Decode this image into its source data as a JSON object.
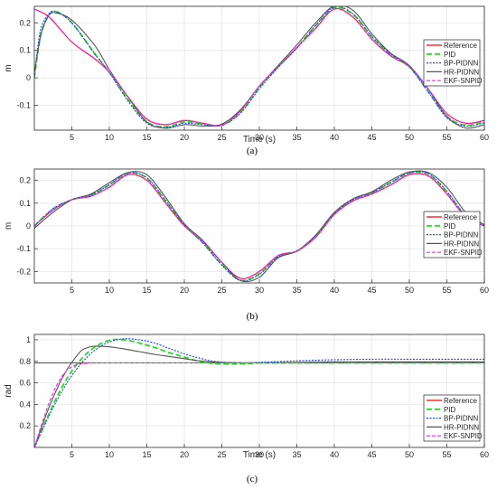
{
  "chart_data": [
    {
      "type": "line",
      "caption": "(a)",
      "xlabel": "Time (s)",
      "ylabel": "m",
      "xlim": [
        0,
        60
      ],
      "ylim": [
        -0.19,
        0.26
      ],
      "xticks": [
        5,
        10,
        15,
        20,
        25,
        30,
        35,
        40,
        45,
        50,
        55,
        60
      ],
      "yticks": [
        -0.1,
        0,
        0.1,
        0.2
      ],
      "ytick_labels": [
        "-0.1",
        "0",
        "0.1",
        "0.2"
      ],
      "grid": true,
      "legend_position": "right",
      "series": [
        {
          "name": "Reference",
          "color": "#ff0000",
          "dash": "solid",
          "x": [
            0,
            2,
            5,
            8,
            10,
            12.5,
            15,
            17.5,
            20,
            22.5,
            25,
            27.5,
            30,
            32.5,
            35,
            37.5,
            40,
            42.5,
            45,
            47.5,
            50,
            52.5,
            55,
            57.5,
            60
          ],
          "y": [
            0.25,
            0.22,
            0.13,
            0.07,
            0.02,
            -0.07,
            -0.15,
            -0.17,
            -0.155,
            -0.165,
            -0.172,
            -0.12,
            -0.03,
            0.04,
            0.11,
            0.18,
            0.25,
            0.22,
            0.14,
            0.08,
            0.04,
            -0.04,
            -0.13,
            -0.165,
            -0.155
          ]
        },
        {
          "name": "PID",
          "color": "#22dd22",
          "dash": "6,3",
          "x": [
            0,
            0.5,
            1,
            2,
            3,
            5,
            8,
            10,
            12.5,
            15,
            17.5,
            20,
            22.5,
            25,
            27.5,
            30,
            32.5,
            35,
            37.5,
            40,
            42.5,
            45,
            47.5,
            50,
            52.5,
            55,
            57.5,
            60
          ],
          "y": [
            0,
            0.1,
            0.17,
            0.23,
            0.24,
            0.2,
            0.09,
            0.02,
            -0.08,
            -0.16,
            -0.178,
            -0.16,
            -0.168,
            -0.172,
            -0.125,
            -0.035,
            0.04,
            0.11,
            0.19,
            0.255,
            0.23,
            0.15,
            0.085,
            0.04,
            -0.05,
            -0.14,
            -0.172,
            -0.16
          ]
        },
        {
          "name": "BP-PIDNN",
          "color": "#1f3fff",
          "dash": "2,1.5",
          "x": [
            0,
            0.5,
            1,
            2,
            3,
            5,
            8,
            10,
            12.5,
            15,
            17.5,
            20,
            22.5,
            25,
            27.5,
            30,
            32.5,
            35,
            37.5,
            40,
            42.5,
            45,
            47.5,
            50,
            52.5,
            55,
            57.5,
            60
          ],
          "y": [
            0,
            0.12,
            0.19,
            0.235,
            0.24,
            0.2,
            0.09,
            0.02,
            -0.085,
            -0.165,
            -0.18,
            -0.165,
            -0.17,
            -0.172,
            -0.128,
            -0.04,
            0.038,
            0.108,
            0.19,
            0.258,
            0.232,
            0.15,
            0.087,
            0.04,
            -0.05,
            -0.145,
            -0.175,
            -0.163
          ]
        },
        {
          "name": "HR-PIDNN",
          "color": "#555555",
          "dash": "solid",
          "x": [
            0,
            0.5,
            1,
            2,
            3,
            5,
            8,
            10,
            12.5,
            15,
            17.5,
            20,
            22.5,
            25,
            27.5,
            30,
            32.5,
            35,
            37.5,
            40,
            42.5,
            45,
            47.5,
            50,
            52.5,
            55,
            57.5,
            60
          ],
          "y": [
            0.02,
            0.1,
            0.17,
            0.23,
            0.235,
            0.21,
            0.12,
            0.03,
            -0.07,
            -0.16,
            -0.183,
            -0.17,
            -0.175,
            -0.168,
            -0.115,
            -0.03,
            0.045,
            0.12,
            0.2,
            0.262,
            0.245,
            0.16,
            0.09,
            0.045,
            -0.04,
            -0.14,
            -0.182,
            -0.17
          ]
        },
        {
          "name": "EKF-SNPID",
          "color": "#ff22ff",
          "dash": "4,2",
          "x": [
            0,
            2,
            5,
            8,
            10,
            12.5,
            15,
            17.5,
            20,
            22.5,
            25,
            27.5,
            30,
            32.5,
            35,
            37.5,
            40,
            42.5,
            45,
            47.5,
            50,
            52.5,
            55,
            57.5,
            60
          ],
          "y": [
            0.25,
            0.221,
            0.131,
            0.071,
            0.021,
            -0.069,
            -0.149,
            -0.169,
            -0.154,
            -0.164,
            -0.171,
            -0.119,
            -0.029,
            0.041,
            0.111,
            0.181,
            0.251,
            0.221,
            0.141,
            0.081,
            0.041,
            -0.039,
            -0.129,
            -0.164,
            -0.154
          ]
        }
      ]
    },
    {
      "type": "line",
      "caption": "(b)",
      "xlabel": "",
      "ylabel": "m",
      "xlim": [
        0,
        60
      ],
      "ylim": [
        -0.25,
        0.25
      ],
      "xticks": [
        5,
        10,
        15,
        20,
        25,
        30,
        35,
        40,
        45,
        50,
        55,
        60
      ],
      "yticks": [
        -0.2,
        -0.1,
        0,
        0.1,
        0.2
      ],
      "ytick_labels": [
        "-0.2",
        "-0.1",
        "0",
        "0.1",
        "0.2"
      ],
      "grid": true,
      "legend_position": "right",
      "series": [
        {
          "name": "Reference",
          "color": "#ff0000",
          "dash": "solid",
          "x": [
            0,
            2.5,
            5,
            7.5,
            10,
            12.5,
            15,
            17.5,
            20,
            22.5,
            25,
            27.5,
            30,
            32.5,
            35,
            37.5,
            40,
            42.5,
            45,
            47.5,
            50,
            52.5,
            55,
            57.5,
            60
          ],
          "y": [
            0,
            0.07,
            0.115,
            0.13,
            0.17,
            0.225,
            0.2,
            0.1,
            0,
            -0.07,
            -0.16,
            -0.23,
            -0.2,
            -0.13,
            -0.11,
            -0.05,
            0.05,
            0.11,
            0.14,
            0.18,
            0.225,
            0.22,
            0.14,
            0.04,
            0
          ]
        },
        {
          "name": "PID",
          "color": "#22dd22",
          "dash": "6,3",
          "x": [
            0,
            2.5,
            5,
            7.5,
            10,
            12.5,
            15,
            17.5,
            20,
            22.5,
            25,
            27.5,
            30,
            32.5,
            35,
            37.5,
            40,
            42.5,
            45,
            47.5,
            50,
            52.5,
            55,
            57.5,
            60
          ],
          "y": [
            0,
            0.075,
            0.115,
            0.135,
            0.18,
            0.232,
            0.21,
            0.11,
            0.005,
            -0.075,
            -0.17,
            -0.238,
            -0.21,
            -0.135,
            -0.11,
            -0.045,
            0.055,
            0.115,
            0.145,
            0.19,
            0.232,
            0.228,
            0.15,
            0.045,
            0
          ]
        },
        {
          "name": "BP-PIDNN",
          "color": "#1f3fff",
          "dash": "2,1.5",
          "x": [
            0,
            2.5,
            5,
            7.5,
            10,
            12.5,
            15,
            17.5,
            20,
            22.5,
            25,
            27.5,
            30,
            32.5,
            35,
            37.5,
            40,
            42.5,
            45,
            47.5,
            50,
            52.5,
            55,
            57.5,
            60
          ],
          "y": [
            0,
            0.076,
            0.116,
            0.136,
            0.181,
            0.233,
            0.212,
            0.112,
            0.004,
            -0.076,
            -0.172,
            -0.24,
            -0.212,
            -0.136,
            -0.111,
            -0.046,
            0.054,
            0.116,
            0.146,
            0.191,
            0.233,
            0.23,
            0.152,
            0.046,
            0
          ]
        },
        {
          "name": "HR-PIDNN",
          "color": "#555555",
          "dash": "solid",
          "x": [
            0,
            2.5,
            5,
            7.5,
            10,
            12.5,
            15,
            17.5,
            20,
            22.5,
            25,
            27.5,
            30,
            32.5,
            35,
            37.5,
            40,
            42.5,
            45,
            47.5,
            50,
            52.5,
            55,
            57.5,
            60
          ],
          "y": [
            -0.01,
            0.06,
            0.115,
            0.14,
            0.19,
            0.235,
            0.225,
            0.125,
            0.01,
            -0.065,
            -0.16,
            -0.24,
            -0.225,
            -0.14,
            -0.11,
            -0.04,
            0.06,
            0.12,
            0.15,
            0.2,
            0.237,
            0.235,
            0.17,
            0.06,
            0.005
          ]
        },
        {
          "name": "EKF-SNPID",
          "color": "#ff22ff",
          "dash": "4,2",
          "x": [
            0,
            2.5,
            5,
            7.5,
            10,
            12.5,
            15,
            17.5,
            20,
            22.5,
            25,
            27.5,
            30,
            32.5,
            35,
            37.5,
            40,
            42.5,
            45,
            47.5,
            50,
            52.5,
            55,
            57.5,
            60
          ],
          "y": [
            0,
            0.07,
            0.115,
            0.131,
            0.171,
            0.226,
            0.201,
            0.101,
            0.001,
            -0.069,
            -0.159,
            -0.229,
            -0.199,
            -0.129,
            -0.109,
            -0.049,
            0.051,
            0.111,
            0.141,
            0.181,
            0.226,
            0.221,
            0.141,
            0.041,
            0.001
          ]
        }
      ]
    },
    {
      "type": "line",
      "caption": "(c)",
      "xlabel": "Time (s)",
      "ylabel": "rad",
      "xlim": [
        0,
        60
      ],
      "ylim": [
        0,
        1.05
      ],
      "xticks": [
        5,
        10,
        15,
        20,
        25,
        30,
        35,
        40,
        45,
        50,
        55,
        60
      ],
      "yticks": [
        0.2,
        0.4,
        0.6,
        0.8,
        1
      ],
      "ytick_labels": [
        "0.2",
        "0.4",
        "0.6",
        "0.8",
        "1"
      ],
      "grid": true,
      "legend_position": "bottom-right",
      "series": [
        {
          "name": "Reference",
          "color": "#ff0000",
          "dash": "solid",
          "x": [
            0,
            60
          ],
          "y": [
            0.785,
            0.785
          ]
        },
        {
          "name": "PID",
          "color": "#22dd22",
          "dash": "6,3",
          "x": [
            0,
            2,
            4,
            6,
            8,
            10,
            12,
            14,
            16,
            18,
            20,
            22,
            24,
            26,
            28,
            30,
            35,
            40,
            50,
            60
          ],
          "y": [
            0,
            0.32,
            0.6,
            0.8,
            0.93,
            0.995,
            1.0,
            0.97,
            0.93,
            0.88,
            0.84,
            0.8,
            0.78,
            0.775,
            0.778,
            0.785,
            0.785,
            0.785,
            0.785,
            0.785
          ]
        },
        {
          "name": "BP-PIDNN",
          "color": "#1f3fff",
          "dash": "2,1.5",
          "x": [
            0,
            2,
            4,
            6,
            8,
            10,
            12,
            14,
            16,
            18,
            20,
            22,
            24,
            27,
            30,
            35,
            40,
            45,
            50,
            55,
            60
          ],
          "y": [
            0,
            0.3,
            0.56,
            0.76,
            0.9,
            0.98,
            1.01,
            1.0,
            0.97,
            0.92,
            0.87,
            0.83,
            0.8,
            0.785,
            0.79,
            0.805,
            0.815,
            0.82,
            0.82,
            0.82,
            0.82
          ]
        },
        {
          "name": "HR-PIDNN",
          "color": "#555555",
          "dash": "solid",
          "x": [
            0,
            2,
            4,
            6,
            7,
            8,
            10,
            12,
            14,
            16,
            18,
            20,
            22,
            25,
            30,
            35,
            40,
            45,
            50,
            60
          ],
          "y": [
            0,
            0.38,
            0.68,
            0.88,
            0.925,
            0.94,
            0.935,
            0.915,
            0.89,
            0.865,
            0.845,
            0.825,
            0.805,
            0.79,
            0.785,
            0.79,
            0.795,
            0.795,
            0.795,
            0.795
          ]
        },
        {
          "name": "EKF-SNPID",
          "color": "#ff22ff",
          "dash": "4,2",
          "x": [
            0,
            1,
            2,
            3,
            4,
            5,
            6,
            7,
            8,
            10,
            15,
            20,
            30,
            40,
            50,
            60
          ],
          "y": [
            0,
            0.22,
            0.42,
            0.58,
            0.69,
            0.75,
            0.775,
            0.782,
            0.785,
            0.785,
            0.785,
            0.785,
            0.785,
            0.785,
            0.785,
            0.785
          ]
        }
      ]
    }
  ]
}
